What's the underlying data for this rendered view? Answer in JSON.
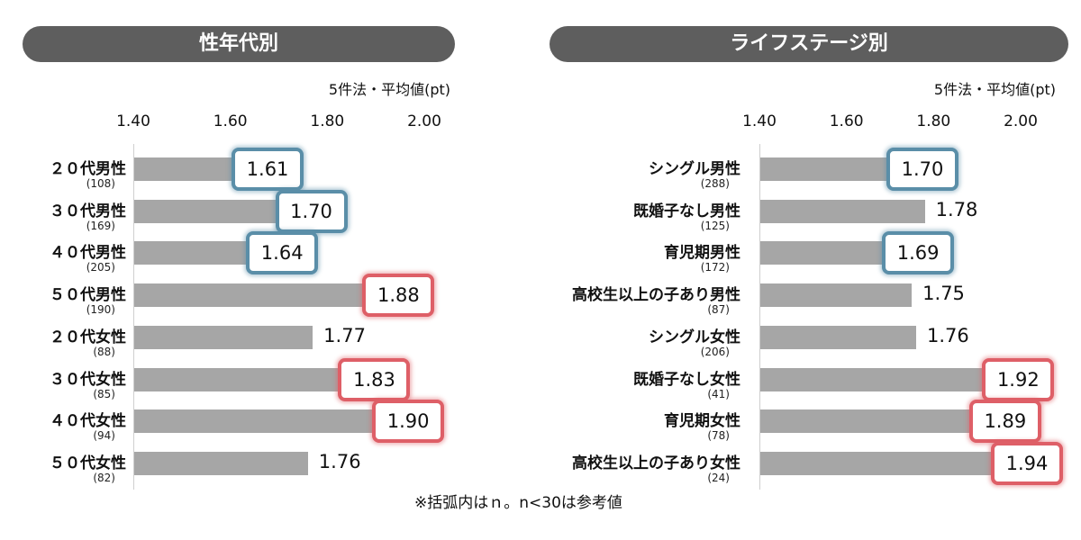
{
  "note": "※括弧内はｎ。n<30は参考値",
  "colors": {
    "header_bg": "#5e5e5e",
    "bar": "#a6a6a6",
    "highlight_low": "#5a8ea8",
    "highlight_high": "#de5f67"
  },
  "chart_data": [
    {
      "type": "bar",
      "orientation": "horizontal",
      "title": "性年代別",
      "unit_label": "5件法・平均値(pt)",
      "xlim": [
        1.4,
        2.0
      ],
      "ticks": [
        "1.40",
        "1.60",
        "1.80",
        "2.00"
      ],
      "categories": [
        "２０代男性",
        "３０代男性",
        "４０代男性",
        "５０代男性",
        "２０代女性",
        "３０代女性",
        "４０代女性",
        "５０代女性"
      ],
      "n_labels": [
        "(108)",
        "(169)",
        "(205)",
        "(190)",
        "(88)",
        "(85)",
        "(94)",
        "(82)"
      ],
      "values": [
        1.61,
        1.7,
        1.64,
        1.88,
        1.77,
        1.83,
        1.9,
        1.76
      ],
      "value_labels": [
        "1.61",
        "1.70",
        "1.64",
        "1.88",
        "1.77",
        "1.83",
        "1.90",
        "1.76"
      ],
      "highlight": [
        "low",
        "low",
        "low",
        "high",
        null,
        "high",
        "high",
        null
      ]
    },
    {
      "type": "bar",
      "orientation": "horizontal",
      "title": "ライフステージ別",
      "unit_label": "5件法・平均値(pt)",
      "xlim": [
        1.4,
        2.0
      ],
      "ticks": [
        "1.40",
        "1.60",
        "1.80",
        "2.00"
      ],
      "categories": [
        "シングル男性",
        "既婚子なし男性",
        "育児期男性",
        "高校生以上の子あり男性",
        "シングル女性",
        "既婚子なし女性",
        "育児期女性",
        "高校生以上の子あり女性"
      ],
      "n_labels": [
        "(288)",
        "(125)",
        "(172)",
        "(87)",
        "(206)",
        "(41)",
        "(78)",
        "(24)"
      ],
      "values": [
        1.7,
        1.78,
        1.69,
        1.75,
        1.76,
        1.92,
        1.89,
        1.94
      ],
      "value_labels": [
        "1.70",
        "1.78",
        "1.69",
        "1.75",
        "1.76",
        "1.92",
        "1.89",
        "1.94"
      ],
      "highlight": [
        "low",
        null,
        "low",
        null,
        null,
        "high",
        "high",
        "high"
      ]
    }
  ]
}
